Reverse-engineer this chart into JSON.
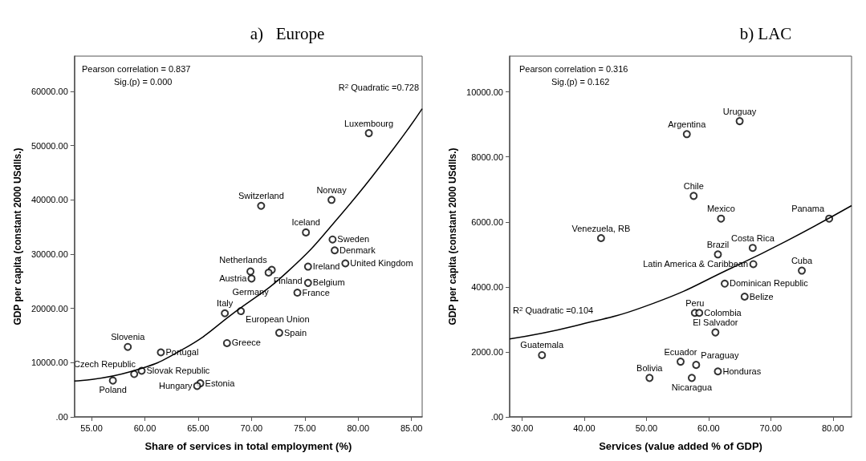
{
  "chart_data": [
    {
      "type": "scatter",
      "title": "a)   Europe",
      "xlabel": "Share of services in total employment (%)",
      "ylabel": "GDP per capita (constant 2000 USdlls.)",
      "marker": "circle",
      "xlim": [
        53.4,
        86
      ],
      "ylim": [
        0,
        66500
      ],
      "xticks": [
        {
          "value": 55,
          "label": "55.00"
        },
        {
          "value": 60,
          "label": "60.00"
        },
        {
          "value": 65,
          "label": "65.00"
        },
        {
          "value": 70,
          "label": "70.00"
        },
        {
          "value": 75,
          "label": "75.00"
        },
        {
          "value": 80,
          "label": "80.00"
        },
        {
          "value": 85,
          "label": "85.00"
        }
      ],
      "yticks": [
        {
          "value": 0,
          "label": ".00"
        },
        {
          "value": 10000,
          "label": "10000.00"
        },
        {
          "value": 20000,
          "label": "20000.00"
        },
        {
          "value": 30000,
          "label": "30000.00"
        },
        {
          "value": 40000,
          "label": "40000.00"
        },
        {
          "value": 50000,
          "label": "50000.00"
        },
        {
          "value": 60000,
          "label": "60000.00"
        }
      ],
      "series": [
        {
          "color": "#000000",
          "x": [
            81.0,
            77.5,
            70.9,
            75.1,
            77.6,
            77.8,
            78.8,
            71.9,
            71.6,
            70.0,
            69.9,
            75.3,
            75.3,
            74.3,
            67.5,
            69.0,
            72.6,
            67.7,
            58.4,
            61.5,
            59.7,
            59.0,
            57.0,
            65.2,
            64.9
          ],
          "values": [
            52300,
            40000,
            38900,
            34000,
            32700,
            30700,
            28300,
            27100,
            26600,
            25500,
            26800,
            27700,
            24700,
            22900,
            19100,
            19500,
            15500,
            13600,
            12900,
            11900,
            8500,
            7900,
            6700,
            6200,
            5700
          ]
        },
        {
          "type": "line",
          "marker": "none",
          "color": "#000000",
          "x": [
            53.4,
            58.6,
            63.6,
            68.5,
            73.4,
            78.3,
            83.3,
            86.0
          ],
          "values": [
            6600,
            8300,
            12500,
            19400,
            26800,
            37100,
            49400,
            56800
          ]
        }
      ],
      "annotations": [
        "Pearson correlation = 0.837",
        "Sig.(p) = 0.000",
        "R$^{2}$ Quadratic =0.728",
        {
          "text": "Luxembourg",
          "x": 81.0,
          "y": 52300
        },
        {
          "text": "Norway",
          "x": 77.5,
          "y": 40000
        },
        {
          "text": "Switzerland",
          "x": 70.9,
          "y": 38900
        },
        {
          "text": "Iceland",
          "x": 75.1,
          "y": 34000
        },
        {
          "text": "Sweden",
          "x": 77.6,
          "y": 32700
        },
        {
          "text": "Denmark",
          "x": 77.8,
          "y": 30700
        },
        {
          "text": "United Kingdom",
          "x": 78.8,
          "y": 28300
        },
        {
          "text": "Netherlands",
          "x": 71.9,
          "y": 27100
        },
        {
          "text": "Finland",
          "x": 71.6,
          "y": 26600
        },
        {
          "text": "Austria",
          "x": 70.0,
          "y": 25500
        },
        {
          "text": "Germany",
          "x": 69.9,
          "y": 26800
        },
        {
          "text": "Ireland",
          "x": 75.3,
          "y": 27700
        },
        {
          "text": "Belgium",
          "x": 75.3,
          "y": 24700
        },
        {
          "text": "France",
          "x": 74.3,
          "y": 22900
        },
        {
          "text": "Italy",
          "x": 67.5,
          "y": 19100
        },
        {
          "text": "European Union",
          "x": 69.0,
          "y": 19500
        },
        {
          "text": "Spain",
          "x": 72.6,
          "y": 15500
        },
        {
          "text": "Greece",
          "x": 67.7,
          "y": 13600
        },
        {
          "text": "Slovenia",
          "x": 58.4,
          "y": 12900
        },
        {
          "text": "Portugal",
          "x": 61.5,
          "y": 11900
        },
        {
          "text": "Slovak Republic",
          "x": 59.7,
          "y": 8500
        },
        {
          "text": "Czech Republic",
          "x": 59.0,
          "y": 7900
        },
        {
          "text": "Poland",
          "x": 57.0,
          "y": 6700
        },
        {
          "text": "Estonia",
          "x": 65.2,
          "y": 6200
        },
        {
          "text": "Hungary",
          "x": 64.9,
          "y": 5700
        }
      ]
    },
    {
      "type": "scatter",
      "title": "b) LAC",
      "xlabel": "Services (value added % of GDP)",
      "ylabel": "GDP per capita (constant 2000 USdlls.)",
      "marker": "circle",
      "xlim": [
        28,
        83
      ],
      "ylim": [
        0,
        11100
      ],
      "xticks": [
        {
          "value": 30,
          "label": "30.00"
        },
        {
          "value": 40,
          "label": "40.00"
        },
        {
          "value": 50,
          "label": "50.00"
        },
        {
          "value": 60,
          "label": "60.00"
        },
        {
          "value": 70,
          "label": "70.00"
        },
        {
          "value": 80,
          "label": "80.00"
        }
      ],
      "yticks": [
        {
          "value": 0,
          "label": ".00"
        },
        {
          "value": 2000,
          "label": "2000.00"
        },
        {
          "value": 4000,
          "label": "4000.00"
        },
        {
          "value": 6000,
          "label": "6000.00"
        },
        {
          "value": 8000,
          "label": "8000.00"
        },
        {
          "value": 10000,
          "label": "10000.00"
        }
      ],
      "series": [
        {
          "color": "#000000",
          "x": [
            65.0,
            56.5,
            57.6,
            62.0,
            79.4,
            42.7,
            67.1,
            61.5,
            67.2,
            75.0,
            62.6,
            65.8,
            57.8,
            58.5,
            61.1,
            33.2,
            55.5,
            58.0,
            61.5,
            50.5,
            57.3
          ],
          "values": [
            9100,
            8700,
            6800,
            6100,
            6100,
            5500,
            5200,
            5000,
            4700,
            4500,
            4100,
            3700,
            3200,
            3200,
            2600,
            1900,
            1700,
            1600,
            1400,
            1200,
            1200
          ]
        },
        {
          "type": "line",
          "marker": "none",
          "color": "#000000",
          "x": [
            28,
            38.5,
            51.2,
            63.9,
            72.4,
            83
          ],
          "values": [
            2400,
            2800,
            3500,
            4600,
            5400,
            6500
          ]
        }
      ],
      "annotations": [
        "Pearson correlation = 0.316",
        "Sig.(p) = 0.162",
        "R$^{2}$ Quadratic =0.104",
        {
          "text": "Uruguay",
          "x": 65.0,
          "y": 9100
        },
        {
          "text": "Argentina",
          "x": 56.5,
          "y": 8700
        },
        {
          "text": "Chile",
          "x": 57.6,
          "y": 6800
        },
        {
          "text": "Mexico",
          "x": 62.0,
          "y": 6100
        },
        {
          "text": "Panama",
          "x": 79.4,
          "y": 6100
        },
        {
          "text": "Venezuela, RB",
          "x": 42.7,
          "y": 5500
        },
        {
          "text": "Costa Rica",
          "x": 67.1,
          "y": 5200
        },
        {
          "text": "Brazil",
          "x": 61.5,
          "y": 5000
        },
        {
          "text": "Latin America & Caribbean",
          "x": 67.2,
          "y": 4700
        },
        {
          "text": "Cuba",
          "x": 75.0,
          "y": 4500
        },
        {
          "text": "Dominican Republic",
          "x": 62.6,
          "y": 4100
        },
        {
          "text": "Belize",
          "x": 65.8,
          "y": 3700
        },
        {
          "text": "Peru",
          "x": 57.8,
          "y": 3200
        },
        {
          "text": "Colombia",
          "x": 58.5,
          "y": 3200
        },
        {
          "text": "El Salvador",
          "x": 61.1,
          "y": 2600
        },
        {
          "text": "Guatemala",
          "x": 33.2,
          "y": 1900
        },
        {
          "text": "Ecuador",
          "x": 55.5,
          "y": 1700
        },
        {
          "text": "Paraguay",
          "x": 58.0,
          "y": 1600
        },
        {
          "text": "Honduras",
          "x": 61.5,
          "y": 1400
        },
        {
          "text": "Bolivia",
          "x": 50.5,
          "y": 1200
        },
        {
          "text": "Nicaragua",
          "x": 57.3,
          "y": 1200
        }
      ]
    }
  ]
}
